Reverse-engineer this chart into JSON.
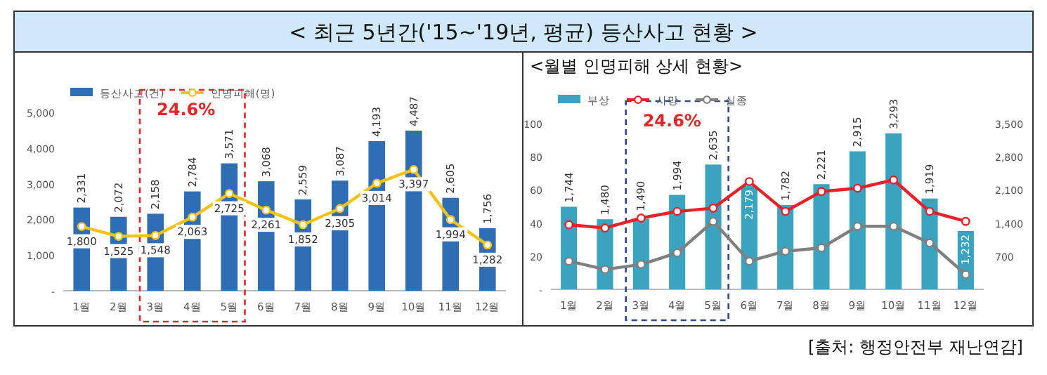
{
  "chart_data": [
    {
      "type": "bar",
      "title": "< 최근 5년간('15~'19년, 평균) 등산사고 현황 >",
      "categories": [
        "1월",
        "2월",
        "3월",
        "4월",
        "5월",
        "6월",
        "7월",
        "8월",
        "9월",
        "10월",
        "11월",
        "12월"
      ],
      "series": [
        {
          "name": "등산사고(건)",
          "color": "#2f6db5",
          "values": [
            2331,
            2072,
            2158,
            2784,
            3571,
            3068,
            2559,
            3087,
            4193,
            4487,
            2605,
            1756
          ],
          "value_labels": [
            "2,331",
            "2,072",
            "2,158",
            "2,784",
            "3,571",
            "3,068",
            "2,559",
            "3,087",
            "4,193",
            "4,487",
            "2,605",
            "1,756"
          ]
        },
        {
          "name": "인명피해(명)",
          "type": "line",
          "color": "#f2c314",
          "values": [
            1800,
            1525,
            1548,
            2063,
            2725,
            2261,
            1852,
            2305,
            3014,
            3397,
            1994,
            1282
          ],
          "value_labels": [
            "1,800",
            "1,525",
            "1,548",
            "2,063",
            "2,725",
            "2,261",
            "1,852",
            "2,305",
            "3,014",
            "3,397",
            "1,994",
            "1,282"
          ]
        }
      ],
      "ylim": [
        0,
        5000
      ],
      "yticks": [
        {
          "value": 0,
          "label": "-"
        },
        {
          "value": 1000,
          "label": "1,000"
        },
        {
          "value": 2000,
          "label": "2,000"
        },
        {
          "value": 3000,
          "label": "3,000"
        },
        {
          "value": 4000,
          "label": "4,000"
        },
        {
          "value": 5000,
          "label": "5,000"
        }
      ],
      "legend": "top left",
      "marker": "circle",
      "annotations": [
        "24.6%"
      ]
    },
    {
      "type": "bar",
      "title": "<월별 인명피해 상세 현황>",
      "categories": [
        "1월",
        "2월",
        "3월",
        "4월",
        "5월",
        "6월",
        "7월",
        "8월",
        "9월",
        "10월",
        "11월",
        "12월"
      ],
      "series": [
        {
          "name": "부상",
          "color": "#3aa3bf",
          "axis": "y2",
          "values": [
            1744,
            1480,
            1490,
            1994,
            2635,
            2179,
            1782,
            2221,
            2915,
            3293,
            1919,
            1232
          ],
          "value_labels": [
            "1,744",
            "1,480",
            "1,490",
            "1,994",
            "2,635",
            "2,179",
            "1,782",
            "2,221",
            "2,915",
            "3,293",
            "1,919",
            "1,232"
          ]
        },
        {
          "name": "사망",
          "type": "line",
          "color": "#e8202a",
          "values": [
            39,
            37,
            43,
            47,
            49,
            65,
            47,
            59,
            61,
            66,
            47,
            41
          ]
        },
        {
          "name": "실종",
          "type": "line",
          "color": "#808080",
          "values": [
            17,
            12,
            15,
            22,
            41,
            17,
            23,
            25,
            38,
            38,
            28,
            9
          ]
        }
      ],
      "ylim": [
        0,
        100
      ],
      "yticks": [
        {
          "value": 0,
          "label": "-"
        },
        20,
        40,
        60,
        80,
        100
      ],
      "y2lim": [
        0,
        3500
      ],
      "y2ticks": [
        {
          "value": 700,
          "label": "700"
        },
        {
          "value": 1400,
          "label": "1,400"
        },
        {
          "value": 2100,
          "label": "2,100"
        },
        {
          "value": 2800,
          "label": "2,800"
        },
        {
          "value": 3500,
          "label": "3,500"
        }
      ],
      "legend": "top left",
      "marker": "circle",
      "annotations": [
        "24.6%",
        "[출처: 행정안전부 재난연감]"
      ]
    }
  ]
}
